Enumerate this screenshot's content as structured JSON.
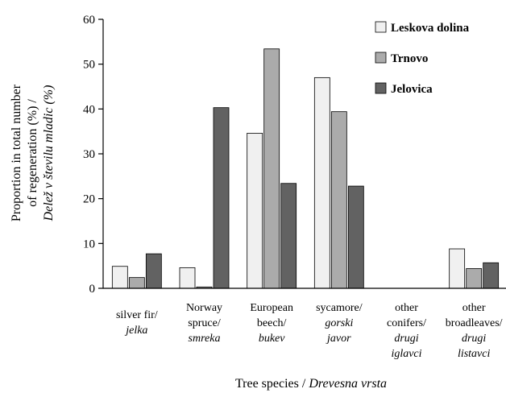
{
  "chart_data": {
    "type": "bar",
    "title": "",
    "categories": [
      {
        "line1": "silver fir/",
        "line2": "jelka",
        "line3": "",
        "line4": ""
      },
      {
        "line1": "Norway",
        "line2": "spruce/",
        "line3": "smreka",
        "line4": ""
      },
      {
        "line1": "European",
        "line2": "beech/",
        "line3": "bukev",
        "line4": ""
      },
      {
        "line1": "sycamore/",
        "line2": "gorski",
        "line3": "javor",
        "line4": ""
      },
      {
        "line1": "other",
        "line2": "conifers/",
        "line3": "drugi",
        "line4": "iglavci"
      },
      {
        "line1": "other",
        "line2": "broadleaves/",
        "line3": "drugi",
        "line4": "listavci"
      }
    ],
    "series": [
      {
        "name": "Leskova dolina",
        "color": "#f0f0f0",
        "values": [
          4.9,
          4.6,
          34.6,
          47.0,
          0,
          8.8
        ]
      },
      {
        "name": "Trnovo",
        "color": "#ababab",
        "values": [
          2.4,
          0.3,
          53.4,
          39.4,
          0,
          4.4
        ]
      },
      {
        "name": "Jelovica",
        "color": "#626262",
        "values": [
          7.7,
          40.3,
          23.4,
          22.8,
          0,
          5.7
        ]
      }
    ],
    "ylim": [
      0,
      60
    ],
    "yticks": [
      0,
      10,
      20,
      30,
      40,
      50,
      60
    ],
    "ylabel": {
      "line1": "Proportion in total number",
      "line2": "of regeneration (%) /",
      "line3": "Delež v številu mladic (%)"
    },
    "xlabel": {
      "main": "Tree species / ",
      "italic": "Drevesna vrsta"
    },
    "legend_position": "top-right",
    "grid": false
  }
}
